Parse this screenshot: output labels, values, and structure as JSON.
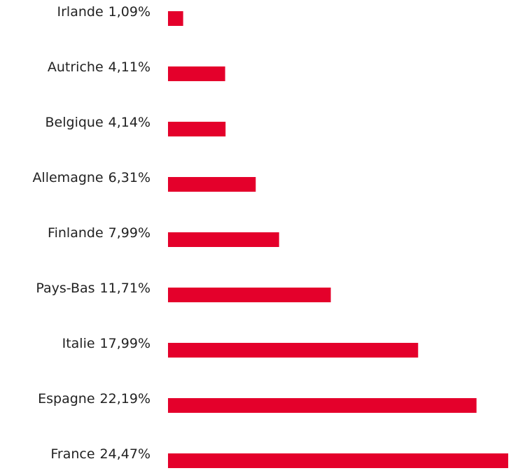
{
  "chart_data": {
    "type": "bar",
    "orientation": "horizontal",
    "categories": [
      "Irlande",
      "Autriche",
      "Belgique",
      "Allemagne",
      "Finlande",
      "Pays-Bas",
      "Italie",
      "Espagne",
      "France"
    ],
    "values": [
      1.09,
      4.11,
      4.14,
      6.31,
      7.99,
      11.71,
      17.99,
      22.19,
      24.47
    ],
    "value_labels": [
      "1,09%",
      "4,11%",
      "4,14%",
      "6,31%",
      "7,99%",
      "11,71%",
      "17,99%",
      "22,19%",
      "24,47%"
    ],
    "title": "",
    "xlabel": "",
    "ylabel": "",
    "xlim": [
      0,
      24.47
    ],
    "grid": false,
    "legend": "none",
    "bar_color": "#e4002b"
  }
}
